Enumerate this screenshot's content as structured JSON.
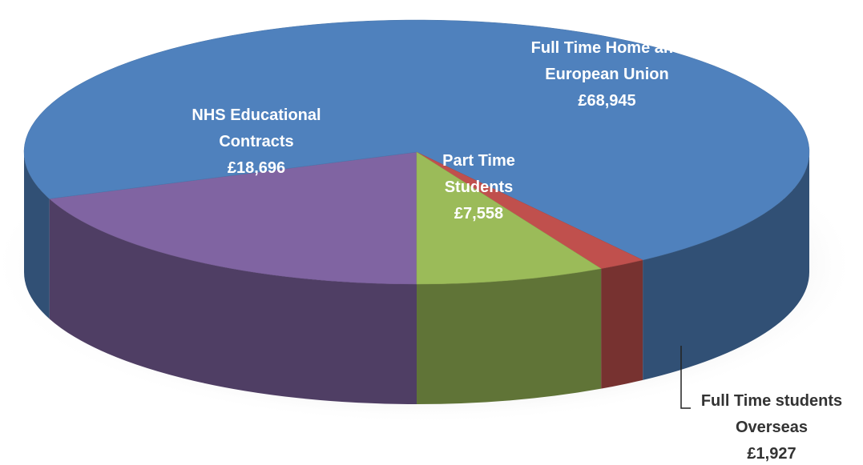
{
  "chart_data": {
    "type": "pie3d",
    "categories": [
      "NHS Educational Contracts",
      "Full Time Home and European Union",
      "Full Time students Overseas",
      "Part Time Students"
    ],
    "values": [
      18696,
      68945,
      1927,
      7558
    ],
    "value_labels": [
      "£18,696",
      "£68,945",
      "£1,927",
      "£7,558"
    ],
    "colors": [
      "#8064a2",
      "#4f81bd",
      "#c0504d",
      "#9bbb59"
    ]
  }
}
